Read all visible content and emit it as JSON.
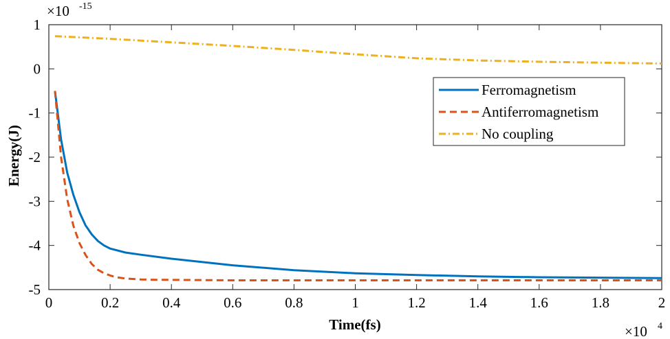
{
  "chart_data": {
    "type": "line",
    "xlabel": "Time(fs)",
    "ylabel": "Energy(J)",
    "x_multiplier": {
      "base": "×10",
      "exponent": "4"
    },
    "y_multiplier": {
      "base": "×10",
      "exponent": "-15"
    },
    "xlim": [
      0,
      2
    ],
    "ylim": [
      -5,
      1
    ],
    "x_ticks": [
      "0",
      "0.2",
      "0.4",
      "0.6",
      "0.8",
      "1",
      "1.2",
      "1.4",
      "1.6",
      "1.8",
      "2"
    ],
    "x_tick_values": [
      0,
      0.2,
      0.4,
      0.6,
      0.8,
      1,
      1.2,
      1.4,
      1.6,
      1.8,
      2
    ],
    "y_ticks": [
      "1",
      "0",
      "-1",
      "-2",
      "-3",
      "-4",
      "-5"
    ],
    "y_tick_values": [
      1,
      0,
      -1,
      -2,
      -3,
      -4,
      -5
    ],
    "grid": false,
    "legend_position": "top-right",
    "series": [
      {
        "name": "Ferromagnetism",
        "color": "#0072BD",
        "style": "solid",
        "x": [
          0.02,
          0.04,
          0.06,
          0.08,
          0.1,
          0.12,
          0.14,
          0.16,
          0.18,
          0.2,
          0.25,
          0.3,
          0.4,
          0.6,
          0.8,
          1.0,
          1.2,
          1.4,
          1.6,
          1.8,
          2.0
        ],
        "y": [
          -0.5,
          -1.6,
          -2.35,
          -2.85,
          -3.25,
          -3.55,
          -3.75,
          -3.9,
          -4.0,
          -4.07,
          -4.16,
          -4.21,
          -4.3,
          -4.45,
          -4.56,
          -4.63,
          -4.67,
          -4.7,
          -4.72,
          -4.73,
          -4.74
        ]
      },
      {
        "name": "Antiferromagnetism",
        "color": "#D95319",
        "style": "dashed",
        "x": [
          0.02,
          0.04,
          0.06,
          0.08,
          0.1,
          0.12,
          0.14,
          0.16,
          0.18,
          0.2,
          0.22,
          0.25,
          0.3,
          0.35,
          0.4,
          0.6,
          0.8,
          1.0,
          1.2,
          1.4,
          1.6,
          1.8,
          2.0
        ],
        "y": [
          -0.5,
          -2.0,
          -2.95,
          -3.55,
          -3.95,
          -4.22,
          -4.42,
          -4.55,
          -4.63,
          -4.68,
          -4.72,
          -4.75,
          -4.77,
          -4.78,
          -4.78,
          -4.79,
          -4.79,
          -4.79,
          -4.79,
          -4.79,
          -4.79,
          -4.79,
          -4.79
        ]
      },
      {
        "name": "No coupling",
        "color": "#EDB120",
        "style": "dashdot",
        "x": [
          0.02,
          0.2,
          0.4,
          0.6,
          0.8,
          1.0,
          1.2,
          1.4,
          1.6,
          1.8,
          2.0
        ],
        "y": [
          0.74,
          0.68,
          0.6,
          0.52,
          0.43,
          0.33,
          0.24,
          0.19,
          0.16,
          0.14,
          0.12
        ]
      }
    ]
  }
}
